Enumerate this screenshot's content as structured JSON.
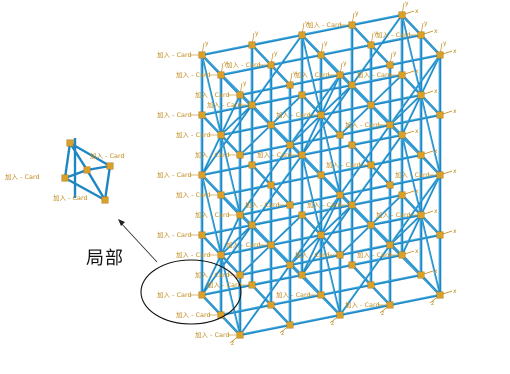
{
  "callout": {
    "label": "局部"
  },
  "node_label": "加入 - Card",
  "axis_labels": {
    "x": "x",
    "y": "y",
    "z": "z"
  },
  "colors": {
    "member": "#1e86c2",
    "member_light": "#46b2e8",
    "node": "#d9a127",
    "annotation": "#c08a1a",
    "ellipse": "#111111"
  }
}
